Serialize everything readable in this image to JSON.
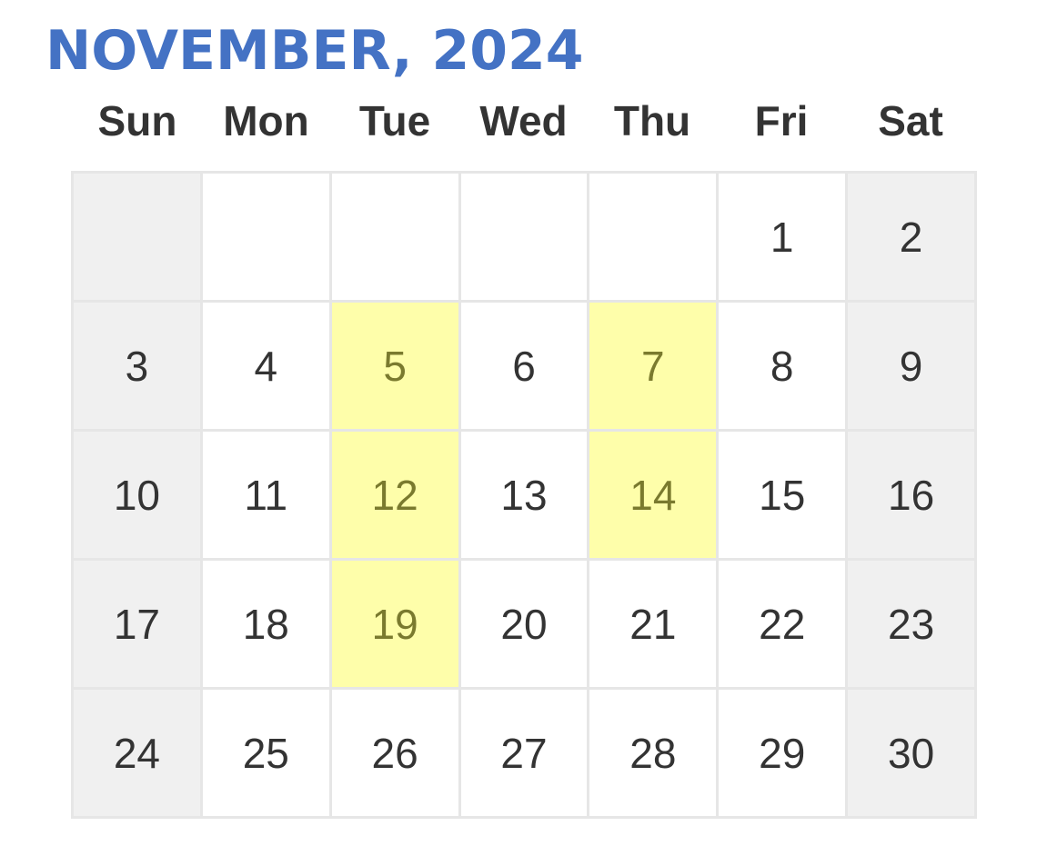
{
  "header": {
    "title": "NOVEMBER, 2024"
  },
  "weekdays": [
    "Sun",
    "Mon",
    "Tue",
    "Wed",
    "Thu",
    "Fri",
    "Sat"
  ],
  "colors": {
    "title": "#4472C4",
    "highlight": "#fefeaa",
    "weekend": "#f0f0f0"
  },
  "weeks": [
    [
      {
        "day": "",
        "weekend": true,
        "highlight": false
      },
      {
        "day": "",
        "weekend": false,
        "highlight": false
      },
      {
        "day": "",
        "weekend": false,
        "highlight": false
      },
      {
        "day": "",
        "weekend": false,
        "highlight": false
      },
      {
        "day": "",
        "weekend": false,
        "highlight": false
      },
      {
        "day": "1",
        "weekend": false,
        "highlight": false
      },
      {
        "day": "2",
        "weekend": true,
        "highlight": false
      }
    ],
    [
      {
        "day": "3",
        "weekend": true,
        "highlight": false
      },
      {
        "day": "4",
        "weekend": false,
        "highlight": false
      },
      {
        "day": "5",
        "weekend": false,
        "highlight": true
      },
      {
        "day": "6",
        "weekend": false,
        "highlight": false
      },
      {
        "day": "7",
        "weekend": false,
        "highlight": true
      },
      {
        "day": "8",
        "weekend": false,
        "highlight": false
      },
      {
        "day": "9",
        "weekend": true,
        "highlight": false
      }
    ],
    [
      {
        "day": "10",
        "weekend": true,
        "highlight": false
      },
      {
        "day": "11",
        "weekend": false,
        "highlight": false
      },
      {
        "day": "12",
        "weekend": false,
        "highlight": true
      },
      {
        "day": "13",
        "weekend": false,
        "highlight": false
      },
      {
        "day": "14",
        "weekend": false,
        "highlight": true
      },
      {
        "day": "15",
        "weekend": false,
        "highlight": false
      },
      {
        "day": "16",
        "weekend": true,
        "highlight": false
      }
    ],
    [
      {
        "day": "17",
        "weekend": true,
        "highlight": false
      },
      {
        "day": "18",
        "weekend": false,
        "highlight": false
      },
      {
        "day": "19",
        "weekend": false,
        "highlight": true
      },
      {
        "day": "20",
        "weekend": false,
        "highlight": false
      },
      {
        "day": "21",
        "weekend": false,
        "highlight": false
      },
      {
        "day": "22",
        "weekend": false,
        "highlight": false
      },
      {
        "day": "23",
        "weekend": true,
        "highlight": false
      }
    ],
    [
      {
        "day": "24",
        "weekend": true,
        "highlight": false
      },
      {
        "day": "25",
        "weekend": false,
        "highlight": false
      },
      {
        "day": "26",
        "weekend": false,
        "highlight": false
      },
      {
        "day": "27",
        "weekend": false,
        "highlight": false
      },
      {
        "day": "28",
        "weekend": false,
        "highlight": false
      },
      {
        "day": "29",
        "weekend": false,
        "highlight": false
      },
      {
        "day": "30",
        "weekend": true,
        "highlight": false
      }
    ]
  ]
}
